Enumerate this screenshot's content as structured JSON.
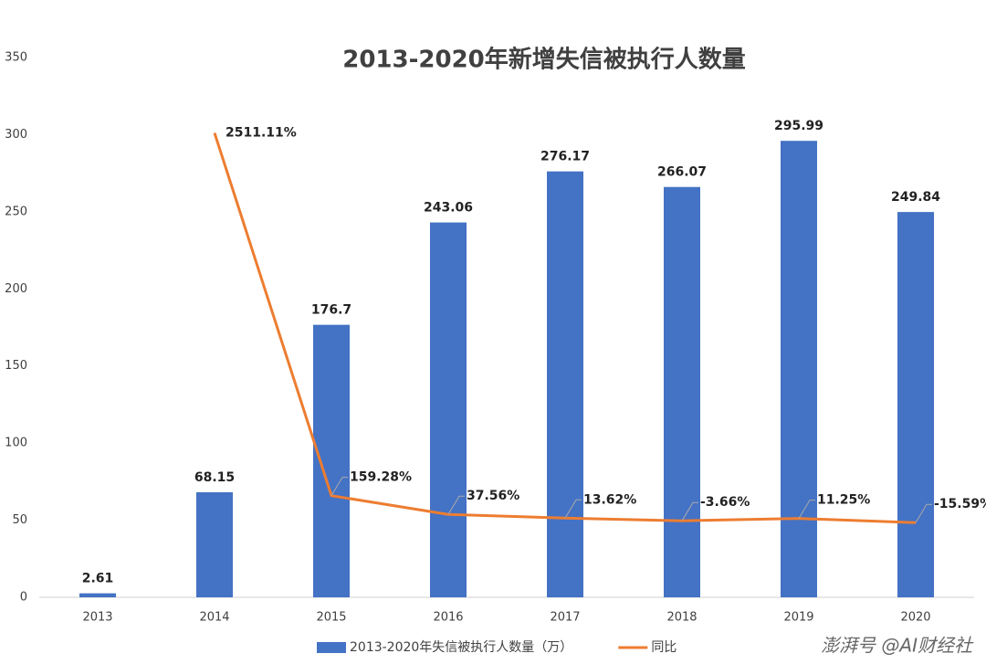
{
  "chart_data": {
    "type": "bar-line",
    "title": "2013-2020年新增失信被执行人数量",
    "categories": [
      "2013",
      "2014",
      "2015",
      "2016",
      "2017",
      "2018",
      "2019",
      "2020"
    ],
    "series": [
      {
        "name": "2013-2020年失信被执行人数量（万）",
        "type": "bar",
        "color": "#4472c4",
        "values": [
          2.61,
          68.15,
          176.7,
          243.06,
          276.17,
          266.07,
          295.99,
          249.84
        ]
      },
      {
        "name": "同比",
        "type": "line",
        "axis": "y2",
        "color": "#ed7d31",
        "values": [
          null,
          2511.11,
          159.28,
          37.56,
          13.62,
          -3.66,
          11.25,
          -15.59
        ],
        "value_labels": [
          null,
          "2511.11%",
          "159.28%",
          "37.56%",
          "13.62%",
          "-3.66%",
          "11.25%",
          "-15.59%"
        ]
      }
    ],
    "ylim": [
      0,
      350
    ],
    "yticks": [
      0,
      50,
      100,
      150,
      200,
      250,
      300,
      350
    ],
    "y2lim": [
      -500,
      3000
    ],
    "grid": false,
    "legend": "bottom",
    "watermark": "澎湃号 @AI财经社"
  }
}
